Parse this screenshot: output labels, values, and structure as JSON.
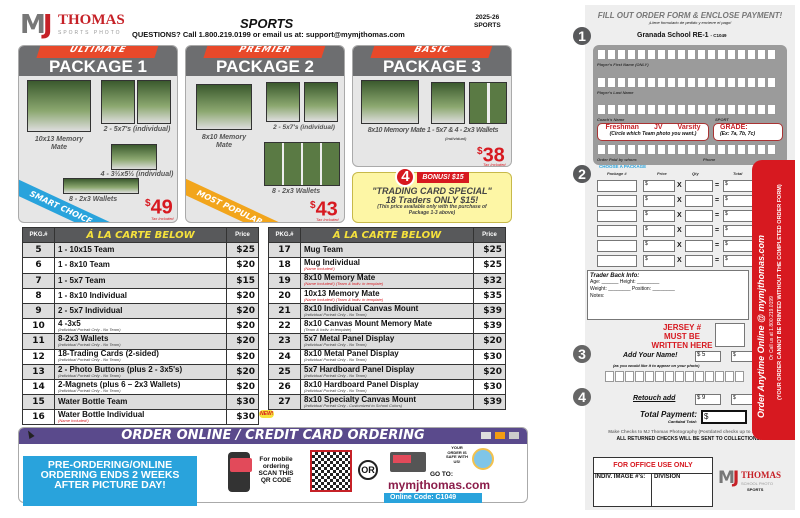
{
  "header": {
    "brand": "THOMAS",
    "brand_sub": "SPORTS PHOTO",
    "title": "SPORTS",
    "questions": "QUESTIONS? Call 1.800.219.0199 or email us at: support@mymjthomas.com",
    "year": "2025-26",
    "year_sub": "SPORTS"
  },
  "packages": [
    {
      "tier": "ULTIMATE",
      "name": "PACKAGE 1",
      "items": [
        "10x13 Memory Mate",
        "2 - 5x7's (individual)",
        "4 - 3½x5½ (individual)",
        "8 - 2x3 Wallets"
      ],
      "price": "49",
      "ribbon": "SMART CHOICE",
      "tax": "Tax Included"
    },
    {
      "tier": "PREMIER",
      "name": "PACKAGE 2",
      "items": [
        "8x10 Memory Mate",
        "2 - 5x7's (individual)",
        "8 - 2x3 Wallets"
      ],
      "price": "43",
      "ribbon": "MOST POPULAR",
      "tax": "Tax Included"
    },
    {
      "tier": "BASIC",
      "name": "PACKAGE 3",
      "items": [
        "8x10 Memory Mate 1 - 5x7 & 4 - 2x3 Wallets",
        "(individual)"
      ],
      "price": "38",
      "tax": "Tax Included"
    }
  ],
  "bonus": {
    "number": "4",
    "label": "BONUS! $15",
    "title": "\"TRADING CARD SPECIAL\"",
    "line": "18 Traders ONLY $15!",
    "note": "(This price available only with the purchase of Package 1-3 above)"
  },
  "ala_carte": {
    "col_pkg": "PKG.#",
    "col_title": "Á LA CARTE BELOW",
    "col_price": "Price",
    "left": [
      [
        "5",
        "1 - 10x15 Team",
        "",
        "$25"
      ],
      [
        "6",
        "1 - 8x10 Team",
        "",
        "$20"
      ],
      [
        "7",
        "1 - 5x7 Team",
        "",
        "$15"
      ],
      [
        "8",
        "1 - 8x10 Individual",
        "",
        "$20"
      ],
      [
        "9",
        "2 - 5x7 Individual",
        "",
        "$20"
      ],
      [
        "10",
        "4 -3x5",
        "(Individual Portrait Only - No Team)",
        "$20"
      ],
      [
        "11",
        "8-2x3 Wallets",
        "(Individual Portrait Only - No Team)",
        "$20"
      ],
      [
        "12",
        "18-Trading Cards (2-sided)",
        "(Individual Portrait Only - No Team)",
        "$20"
      ],
      [
        "13",
        "2 - Photo Buttons (plus 2 - 3x5's)",
        "(Individual Portrait Only - No Team)",
        "$20"
      ],
      [
        "14",
        "2-Magnets (plus 6 – 2x3 Wallets)",
        "(Individual Portrait Only - No Team)",
        "$20"
      ],
      [
        "15",
        "Water Bottle Team",
        "",
        "$30"
      ],
      [
        "16",
        "Water Bottle Individual",
        "(Name Included!)",
        "$30"
      ]
    ],
    "right": [
      [
        "17",
        "Mug Team",
        "",
        "$25"
      ],
      [
        "18",
        "Mug Individual",
        "(Name Included!)",
        "$25"
      ],
      [
        "19",
        "8x10 Memory Mate",
        "(Name Included!) (Team & Indiv. in template)",
        "$32"
      ],
      [
        "20",
        "10x13 Memory Mate",
        "(Name Included!) (Team & Indiv. in template)",
        "$35"
      ],
      [
        "21",
        "8x10 Individual Canvas Mount",
        "(Individual Portrait Only - No Team)",
        "$39"
      ],
      [
        "22",
        "8x10 Canvas Mount Memory Mate",
        "(Team & Indiv. in template)",
        "$39"
      ],
      [
        "23",
        "5x7 Metal Panel Display",
        "(Individual Portrait Only - No Team)",
        "$20"
      ],
      [
        "24",
        "8x10 Metal Panel Display",
        "(Individual Portrait Only - No Team)",
        "$30"
      ],
      [
        "25",
        "5x7 Hardboard Panel Display",
        "(Individual Portrait Only - No Team)",
        "$20"
      ],
      [
        "26",
        "8x10 Hardboard Panel Display",
        "(Individual Portrait Only - No Team)",
        "$30"
      ],
      [
        "27",
        "8x10 Specialty Canvas Mount",
        "(Individual Portrait Only - Customized to School Colors)",
        "$39"
      ]
    ],
    "new_badge": "NEW!"
  },
  "online": {
    "banner": "ORDER ONLINE / CREDIT CARD ORDERING",
    "pre": "PRE-ORDERING/ONLINE ORDERING ENDS 2 WEEKS AFTER PICTURE DAY!",
    "mobile": "For mobile ordering SCAN THIS QR CODE",
    "or": "OR",
    "safe": "YOUR ORDER IS SAFE WITH US!",
    "goto": "GO TO:",
    "url": "mymjthomas.com",
    "code": "Online Code: C1049"
  },
  "form": {
    "title": "FILL OUT ORDER FORM & ENCLOSE PAYMENT!",
    "subtitle": "¡Llene formulario de pedido y encierre el pago!",
    "school": "Granada School RE-1",
    "code": "- C1049",
    "fields": [
      "Player's First Name (ONLY)",
      "Player's Last Name",
      "Coach's Name",
      "SPORT"
    ],
    "teams": [
      "Freshman",
      "JV",
      "Varsity"
    ],
    "circle_note": "(Circle which Team photo you want.)",
    "grade": "GRADE:",
    "grade_ex": "(Ex: 7a, 7b, 7c)",
    "paid_by": "Order Paid by whom:",
    "phone": "Phone",
    "choose": "CHOOSE A PACKAGE",
    "cols": [
      "Package #",
      "Price",
      "Qty",
      "Total"
    ],
    "dollar": "$",
    "x": "X",
    "eq": "=",
    "trader": {
      "title": "Trader Back Info:",
      "age": "Age:",
      "height": "Height:",
      "weight": "Weight:",
      "position": "Position:",
      "notes": "Notes:"
    },
    "jersey": "JERSEY # MUST BE WRITTEN HERE",
    "add_name": "Add Your Name!",
    "add_name_price": "$ 5",
    "add_name_note": "(as you would like it to appear on your photo)",
    "retouch": "Retouch add",
    "retouch_price": "$ 9",
    "total": "Total Payment:",
    "total_sub": "Cantidad Total:",
    "checks": "Make Checks to MJ Thomas Photography (Postdated checks up to 30 days)",
    "collections": "ALL RETURNED CHECKS WILL BE SENT TO COLLECTIONS!",
    "office": "FOR OFFICE USE ONLY",
    "indiv": "INDIV. IMAGE #'s:",
    "division": "DIVISION",
    "brand_sub": "SCHOOL PHOTO",
    "sports": "SPORTS",
    "side1": "Order Anytime Online @ mymjthomas.com",
    "side2": "Or Call us at 1.800.219.0199",
    "side3": "(YOUR ORDER CANNOT BE PRINTED WITHOUT THE COMPLETED ORDER FORM)"
  },
  "colors": {
    "red": "#d71920",
    "orange": "#e8492a",
    "gray": "#6d6e70",
    "blue": "#29a3dc",
    "purple": "#5a4a8c",
    "yellow": "#f6e23c"
  }
}
